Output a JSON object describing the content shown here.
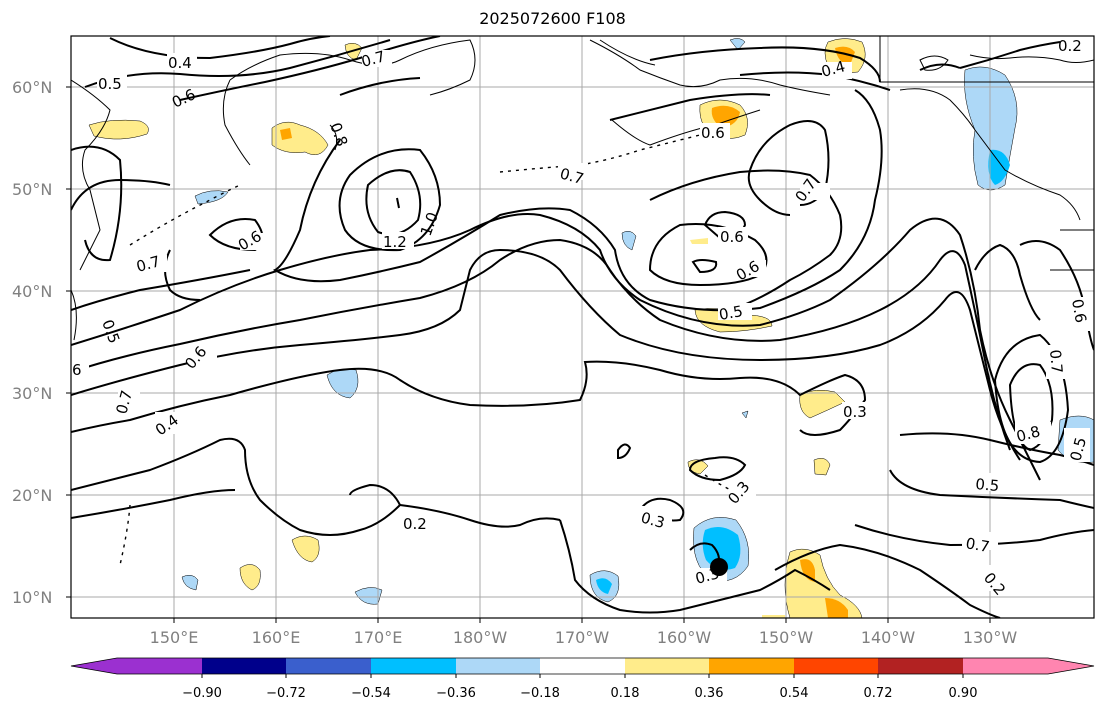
{
  "title": "2025072600 F108",
  "lat_labels": [
    "60°N",
    "50°N",
    "40°N",
    "30°N",
    "20°N",
    "10°N"
  ],
  "lon_labels": [
    "150°E",
    "160°E",
    "170°E",
    "180°W",
    "170°W",
    "160°W",
    "150°W",
    "140°W",
    "130°W"
  ],
  "colorbar": {
    "tick_labels": [
      "−0.90",
      "−0.72",
      "−0.54",
      "−0.36",
      "−0.18",
      "0.18",
      "0.36",
      "0.54",
      "0.72",
      "0.90"
    ],
    "colors": [
      "#9b30d0",
      "#00008b",
      "#3a5fcd",
      "#00bfff",
      "#add8f7",
      "#ffffff",
      "#ffec8b",
      "#ffa500",
      "#ff4500",
      "#b22222",
      "#ff85b0"
    ]
  },
  "contour_labels": [
    "0.4",
    "0.5",
    "0.6",
    "0.7",
    "0.8",
    "0.7",
    "0.4",
    "0.3",
    "0.6",
    "0.7",
    "0.6",
    "0.7",
    "1.2",
    "1.0",
    "0.6",
    "0.7",
    "0.5",
    "0.6",
    "0.7",
    "0.6",
    "0.5",
    "0.7",
    "0.4",
    "0.3",
    "0.3",
    "0.2",
    "0.2",
    "0.3",
    "0.5",
    "0.3",
    "0.2",
    "0.8",
    "0.7",
    "0.6",
    "0.5",
    "6"
  ],
  "colors": {
    "grid": "#a9a9a9",
    "contour": "#000000",
    "coast": "#000000"
  }
}
